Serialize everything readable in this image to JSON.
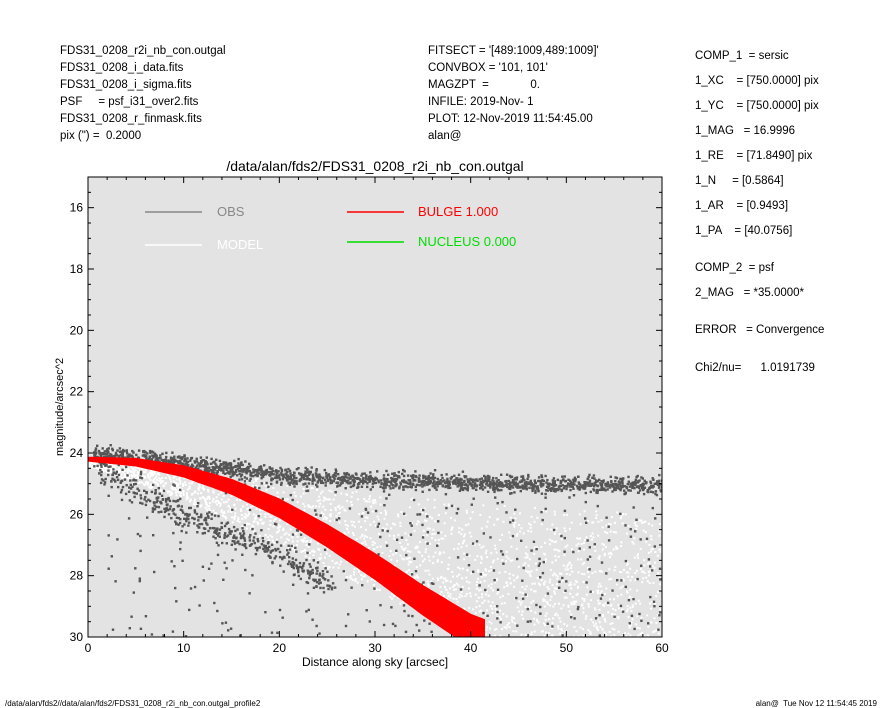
{
  "header_left": [
    "FDS31_0208_r2i_nb_con.outgal",
    "FDS31_0208_i_data.fits",
    "FDS31_0208_i_sigma.fits",
    "PSF     = psf_i31_over2.fits",
    "FDS31_0208_r_finmask.fits",
    "pix (\") =  0.2000"
  ],
  "header_mid": [
    "FITSECT = '[489:1009,489:1009]'",
    "CONVBOX = '101, 101'",
    "MAGZPT  =             0.",
    "INFILE: 2019-Nov- 1",
    "PLOT: 12-Nov-2019 11:54:45.00",
    "alan@"
  ],
  "params": [
    "COMP_1  = sersic",
    "1_XC    = [750.0000] pix",
    "1_YC    = [750.0000] pix",
    "1_MAG   = 16.9996",
    "1_RE    = [71.8490] pix",
    "1_N     = [0.5864]",
    "1_AR    = [0.9493]",
    "1_PA    = [40.0756]",
    "COMP_2  = psf",
    "2_MAG   = *35.0000*",
    "ERROR   = Convergence",
    "Chi2/nu=      1.0191739"
  ],
  "footer_left": "/data/alan/fds2//data/alan/fds2/FDS31_0208_r2i_nb_con.outgal_profile2",
  "footer_right": "alan@  Tue Nov 12 11:54:45 2019",
  "colors": {
    "plot_bg": "#e3e3e3",
    "obs": "#555555",
    "model": "#ffffff",
    "bulge": "#ff0000",
    "nucleus": "#00dd00"
  },
  "chart_data": {
    "type": "scatter",
    "title": "/data/alan/fds2/FDS31_0208_r2i_nb_con.outgal",
    "xlabel": "Distance along sky [arcsec]",
    "ylabel": "magnitude/arcsec^2",
    "xlim": [
      0,
      60
    ],
    "ylim": [
      30,
      15
    ],
    "xticks": [
      0,
      10,
      20,
      30,
      40,
      50,
      60
    ],
    "yticks": [
      16,
      18,
      20,
      22,
      24,
      26,
      28,
      30
    ],
    "legend": [
      {
        "label": "OBS",
        "color": "#888888"
      },
      {
        "label": "MODEL",
        "color": "#ffffff"
      },
      {
        "label": "BULGE  1.000",
        "color": "#ff0000"
      },
      {
        "label": "NUCLEUS  0.000",
        "color": "#00dd00"
      }
    ],
    "legend_placement": "top",
    "obs_upper_ridge": {
      "x": [
        0,
        5,
        10,
        15,
        20,
        25,
        30,
        35,
        40,
        45,
        50,
        55,
        60
      ],
      "y": [
        24.0,
        24.1,
        24.3,
        24.5,
        24.7,
        24.8,
        24.9,
        24.9,
        24.95,
        25.0,
        25.0,
        25.0,
        25.05
      ]
    },
    "obs_lower_branch": {
      "x": [
        0,
        5,
        10,
        15,
        20,
        25
      ],
      "y": [
        24.3,
        25.2,
        26.0,
        26.6,
        27.3,
        28.2
      ]
    },
    "bulge_profile": {
      "x": [
        0,
        5,
        10,
        15,
        20,
        25,
        30,
        35,
        40,
        41.5
      ],
      "y": [
        24.2,
        24.3,
        24.6,
        25.1,
        25.8,
        26.7,
        27.7,
        28.8,
        29.8,
        30.0
      ]
    },
    "model_band": {
      "x": [
        0,
        10,
        20,
        30,
        40,
        50,
        60
      ],
      "y_top": [
        24.2,
        24.5,
        24.9,
        25.3,
        25.6,
        25.8,
        26.0
      ],
      "y_bottom": [
        24.4,
        25.5,
        27.0,
        28.5,
        30.0,
        30.0,
        30.0
      ]
    }
  }
}
